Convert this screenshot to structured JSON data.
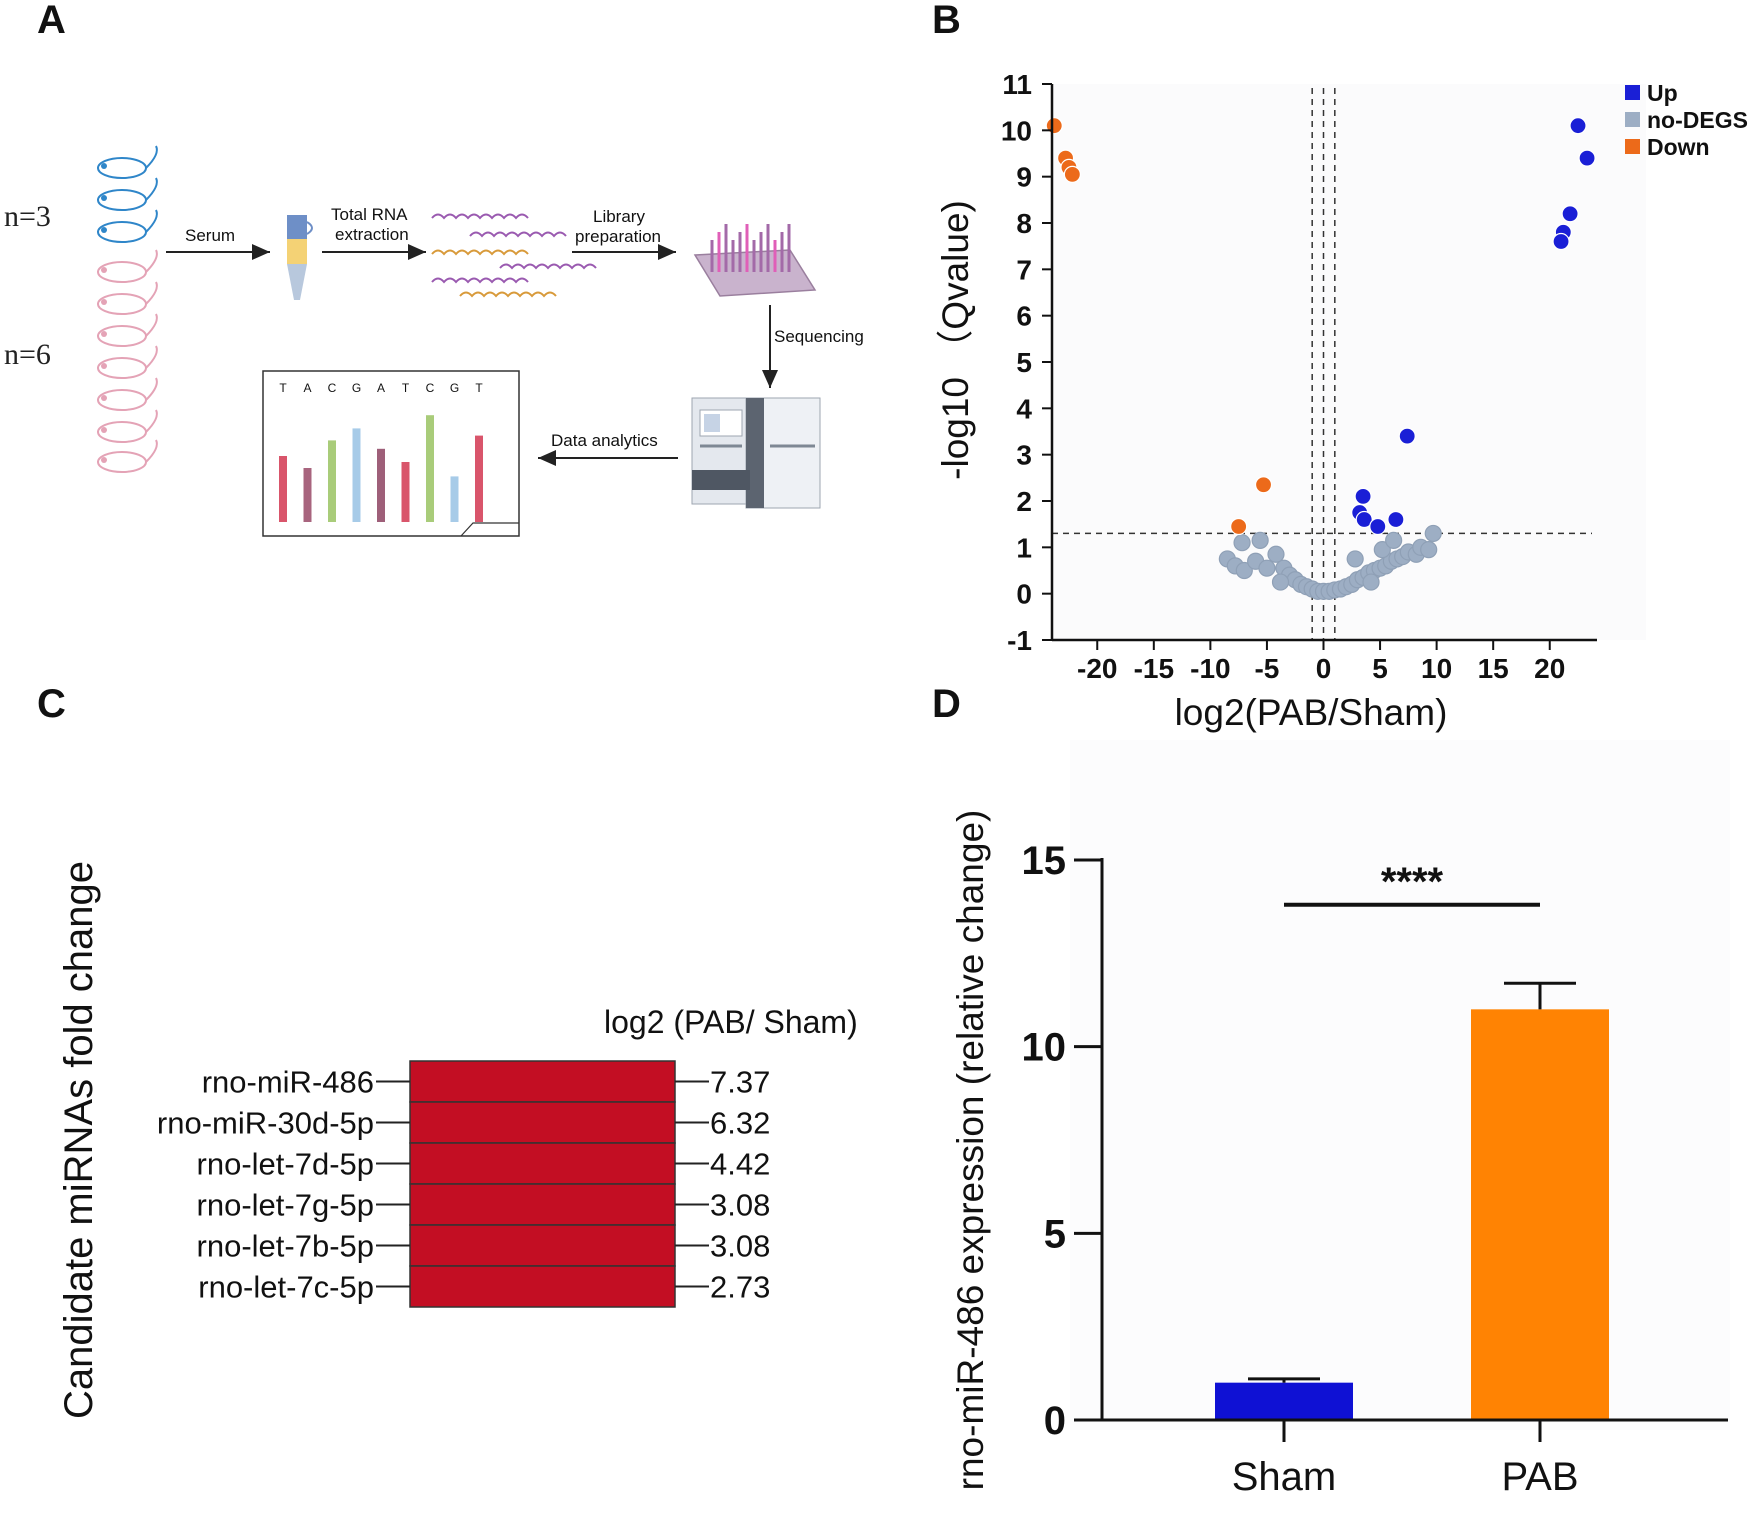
{
  "panels": {
    "a": "A",
    "b": "B",
    "c": "C",
    "d": "D"
  },
  "panel_a": {
    "group_counts": [
      "n=3",
      "n=6"
    ],
    "steps": {
      "serum": "Serum",
      "rna_line1": "Total RNA",
      "rna_line2": "extraction",
      "lib_line1": "Library",
      "lib_line2": "preparation",
      "sequencing": "Sequencing",
      "analytics": "Data analytics"
    },
    "bases": [
      "T",
      "A",
      "C",
      "G",
      "A",
      "T",
      "C",
      "G",
      "T"
    ],
    "base_colors": [
      "#d9556b",
      "#a8647e",
      "#a9cc7a",
      "#a7cbe8",
      "#9e5f79",
      "#d9556b",
      "#a9cc7a",
      "#a7cbe8",
      "#d9556b"
    ],
    "base_heights": [
      0.55,
      0.45,
      0.68,
      0.78,
      0.61,
      0.5,
      0.89,
      0.38,
      0.72
    ]
  },
  "chart_data": [
    {
      "type": "scatter",
      "xlabel": "log2(PAB/Sham)",
      "ylabel": "-log10 （Qvalue)",
      "xlim": [
        -24,
        24
      ],
      "ylim": [
        -1,
        11
      ],
      "xticks": [
        -20,
        -15,
        -10,
        -5,
        0,
        5,
        10,
        15,
        20
      ],
      "yticks": [
        -1,
        0,
        1,
        2,
        3,
        4,
        5,
        6,
        7,
        8,
        9,
        10,
        11
      ],
      "threshold_y": 1.3,
      "threshold_x": [
        -1,
        0,
        1
      ],
      "legend": [
        "Up",
        "no-DEGS",
        "Down"
      ],
      "legend_position": "top-right",
      "colors": {
        "up": "#1a1fd6",
        "no": "#9daec4",
        "down": "#ec6a1a"
      },
      "series": [
        {
          "name": "Up",
          "points": [
            [
              22.5,
              10.1
            ],
            [
              23.3,
              9.4
            ],
            [
              21.8,
              8.2
            ],
            [
              21.2,
              7.8
            ],
            [
              21.0,
              7.6
            ],
            [
              7.4,
              3.4
            ],
            [
              3.5,
              2.1
            ],
            [
              3.2,
              1.75
            ],
            [
              3.6,
              1.6
            ],
            [
              4.8,
              1.45
            ],
            [
              6.4,
              1.6
            ]
          ]
        },
        {
          "name": "no-DEGS",
          "points": [
            [
              -8.5,
              0.75
            ],
            [
              -7.8,
              0.6
            ],
            [
              -7,
              0.5
            ],
            [
              -6,
              0.7
            ],
            [
              -5,
              0.55
            ],
            [
              -5.6,
              1.15
            ],
            [
              -7.2,
              1.1
            ],
            [
              -4.2,
              0.85
            ],
            [
              -3.5,
              0.55
            ],
            [
              -3,
              0.4
            ],
            [
              -2.5,
              0.3
            ],
            [
              -2,
              0.2
            ],
            [
              -1.5,
              0.15
            ],
            [
              -1,
              0.1
            ],
            [
              -0.5,
              0.05
            ],
            [
              0,
              0.05
            ],
            [
              0.5,
              0.05
            ],
            [
              1,
              0.08
            ],
            [
              1.5,
              0.1
            ],
            [
              2,
              0.15
            ],
            [
              2.5,
              0.2
            ],
            [
              3,
              0.3
            ],
            [
              3.5,
              0.35
            ],
            [
              4,
              0.45
            ],
            [
              4.5,
              0.5
            ],
            [
              5,
              0.55
            ],
            [
              5.5,
              0.6
            ],
            [
              6,
              0.7
            ],
            [
              6.5,
              0.75
            ],
            [
              7,
              0.8
            ],
            [
              7.5,
              0.9
            ],
            [
              8.2,
              0.85
            ],
            [
              8.6,
              1.0
            ],
            [
              9.3,
              0.95
            ],
            [
              9.7,
              1.3
            ],
            [
              2.8,
              0.75
            ],
            [
              5.2,
              0.95
            ],
            [
              6.2,
              1.15
            ],
            [
              -3.8,
              0.25
            ],
            [
              4.2,
              0.25
            ]
          ]
        },
        {
          "name": "Down",
          "points": [
            [
              -23.8,
              10.1
            ],
            [
              -22.8,
              9.4
            ],
            [
              -22.5,
              9.2
            ],
            [
              -22.2,
              9.05
            ],
            [
              -5.3,
              2.35
            ],
            [
              -7.5,
              1.45
            ]
          ]
        }
      ]
    },
    {
      "type": "table",
      "ylabel": "Candidate miRNAs fold change",
      "column_header": "log2 (PAB/ Sham)",
      "cell_color": "#c30e23",
      "rows": [
        {
          "name": "rno-miR-486",
          "value": "7.37"
        },
        {
          "name": "rno-miR-30d-5p",
          "value": "6.32"
        },
        {
          "name": "rno-let-7d-5p",
          "value": "4.42"
        },
        {
          "name": "rno-let-7g-5p",
          "value": "3.08"
        },
        {
          "name": "rno-let-7b-5p",
          "value": "3.08"
        },
        {
          "name": "rno-let-7c-5p",
          "value": "2.73"
        }
      ]
    },
    {
      "type": "bar",
      "ylabel": "rno-miR-486 expression (relative change)",
      "categories": [
        "Sham",
        "PAB"
      ],
      "values": [
        1.0,
        11.0
      ],
      "errors": [
        0.1,
        0.7
      ],
      "colors": [
        "#0f11d4",
        "#ff8303"
      ],
      "ylim": [
        0,
        15
      ],
      "yticks": [
        0,
        5,
        10,
        15
      ],
      "significance": "****"
    }
  ]
}
